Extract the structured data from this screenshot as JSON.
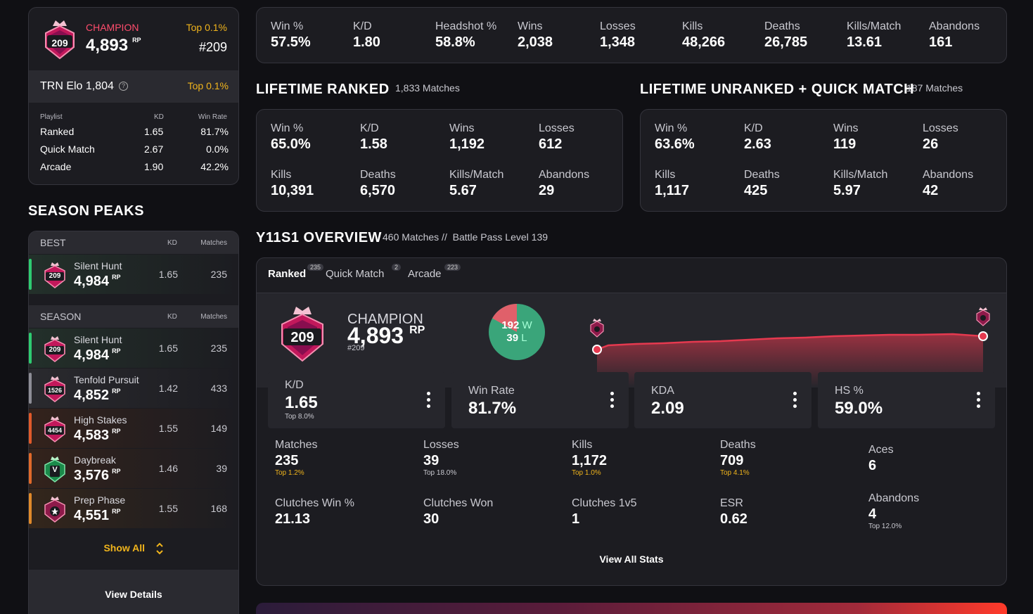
{
  "profile": {
    "rank_name": "CHAMPION",
    "rp": "4,893",
    "rp_unit": "RP",
    "top_pct": "Top 0.1%",
    "position": "#209",
    "badge_number": "209",
    "trn_elo": "TRN Elo 1,804",
    "trn_top": "Top 0.1%",
    "playlist_header": {
      "playlist": "Playlist",
      "kd": "KD",
      "winrate": "Win Rate"
    },
    "playlists": [
      {
        "name": "Ranked",
        "kd": "1.65",
        "winrate": "81.7%"
      },
      {
        "name": "Quick Match",
        "kd": "2.67",
        "winrate": "0.0%"
      },
      {
        "name": "Arcade",
        "kd": "1.90",
        "winrate": "42.2%"
      }
    ]
  },
  "overall": [
    {
      "label": "Win %",
      "value": "57.5%"
    },
    {
      "label": "K/D",
      "value": "1.80"
    },
    {
      "label": "Headshot %",
      "value": "58.8%"
    },
    {
      "label": "Wins",
      "value": "2,038"
    },
    {
      "label": "Losses",
      "value": "1,348"
    },
    {
      "label": "Kills",
      "value": "48,266"
    },
    {
      "label": "Deaths",
      "value": "26,785"
    },
    {
      "label": "Kills/Match",
      "value": "13.61"
    },
    {
      "label": "Abandons",
      "value": "161"
    }
  ],
  "lifetime_ranked": {
    "title": "LIFETIME RANKED",
    "sub": "1,833 Matches",
    "stats": [
      {
        "label": "Win %",
        "value": "65.0%"
      },
      {
        "label": "K/D",
        "value": "1.58"
      },
      {
        "label": "Wins",
        "value": "1,192"
      },
      {
        "label": "Losses",
        "value": "612"
      },
      {
        "label": "Kills",
        "value": "10,391"
      },
      {
        "label": "Deaths",
        "value": "6,570"
      },
      {
        "label": "Kills/Match",
        "value": "5.67"
      },
      {
        "label": "Abandons",
        "value": "29"
      }
    ]
  },
  "lifetime_unranked": {
    "title": "LIFETIME UNRANKED + QUICK MATCH",
    "sub": "187 Matches",
    "stats": [
      {
        "label": "Win %",
        "value": "63.6%"
      },
      {
        "label": "K/D",
        "value": "2.63"
      },
      {
        "label": "Wins",
        "value": "119"
      },
      {
        "label": "Losses",
        "value": "26"
      },
      {
        "label": "Kills",
        "value": "1,117"
      },
      {
        "label": "Deaths",
        "value": "425"
      },
      {
        "label": "Kills/Match",
        "value": "5.97"
      },
      {
        "label": "Abandons",
        "value": "42"
      }
    ]
  },
  "season_peaks": {
    "title": "SEASON PEAKS",
    "best_header": "BEST",
    "season_header": "SEASON",
    "kd_header": "KD",
    "matches_header": "Matches",
    "best": [
      {
        "name": "Silent Hunt",
        "rp": "4,984",
        "unit": "RP",
        "badge": "209",
        "kd": "1.65",
        "matches": "235",
        "color": "#2ecc71"
      }
    ],
    "season": [
      {
        "name": "Silent Hunt",
        "rp": "4,984",
        "unit": "RP",
        "badge": "209",
        "kd": "1.65",
        "matches": "235",
        "color": "#2ecc71"
      },
      {
        "name": "Tenfold Pursuit",
        "rp": "4,852",
        "unit": "RP",
        "badge": "1526",
        "kd": "1.42",
        "matches": "433",
        "color": "#8e8e96"
      },
      {
        "name": "High Stakes",
        "rp": "4,583",
        "unit": "RP",
        "badge": "4454",
        "kd": "1.55",
        "matches": "149",
        "color": "#e05a2a"
      },
      {
        "name": "Daybreak",
        "rp": "3,576",
        "unit": "RP",
        "badge": "V",
        "kd": "1.46",
        "matches": "39",
        "color": "#e06a2a"
      },
      {
        "name": "Prep Phase",
        "rp": "4,551",
        "unit": "RP",
        "badge": "",
        "kd": "1.55",
        "matches": "168",
        "color": "#e08a2a"
      }
    ],
    "show_all": "Show All",
    "view_details": "View Details"
  },
  "overview": {
    "title": "Y11S1 OVERVIEW",
    "sub": "460 Matches //  Battle Pass Level 139",
    "tabs": [
      {
        "label": "Ranked",
        "count": "235"
      },
      {
        "label": "Quick Match",
        "count": "2"
      },
      {
        "label": "Arcade",
        "count": "223"
      }
    ],
    "rank_name": "CHAMPION",
    "rp": "4,893",
    "rp_unit": "RP",
    "position": "#209",
    "badge_number": "209",
    "wins": "192",
    "wins_suffix": "W",
    "losses": "39",
    "losses_suffix": "L",
    "win_fraction": 0.831,
    "tiles": [
      {
        "label": "K/D",
        "value": "1.65",
        "sub": "Top 8.0%"
      },
      {
        "label": "Win Rate",
        "value": "81.7%",
        "sub": ""
      },
      {
        "label": "KDA",
        "value": "2.09",
        "sub": ""
      },
      {
        "label": "HS %",
        "value": "59.0%",
        "sub": ""
      }
    ],
    "grid": [
      {
        "label": "Matches",
        "value": "235",
        "sub": "Top 1.2%"
      },
      {
        "label": "Losses",
        "value": "39",
        "sub": "Top 18.0%"
      },
      {
        "label": "Kills",
        "value": "1,172",
        "sub": "Top 1.0%"
      },
      {
        "label": "Deaths",
        "value": "709",
        "sub": "Top 4.1%"
      },
      {
        "label": "Aces",
        "value": "6",
        "sub": ""
      },
      {
        "label": "Clutches Win %",
        "value": "21.13",
        "sub": ""
      },
      {
        "label": "Clutches Won",
        "value": "30",
        "sub": ""
      },
      {
        "label": "Clutches 1v5",
        "value": "1",
        "sub": ""
      },
      {
        "label": "ESR",
        "value": "0.62",
        "sub": ""
      },
      {
        "label": "Abandons",
        "value": "4",
        "sub": "Top 12.0%"
      }
    ],
    "view_all": "View All Stats"
  },
  "colors": {
    "gold": "#f0b41c",
    "accent": "#ff4d6d",
    "win": "#3aa57a",
    "loss": "#e0606a"
  },
  "icons": [
    "help-circle-icon",
    "chevron-updown-icon",
    "kebab-menu-icon",
    "rank-badge-icon"
  ]
}
